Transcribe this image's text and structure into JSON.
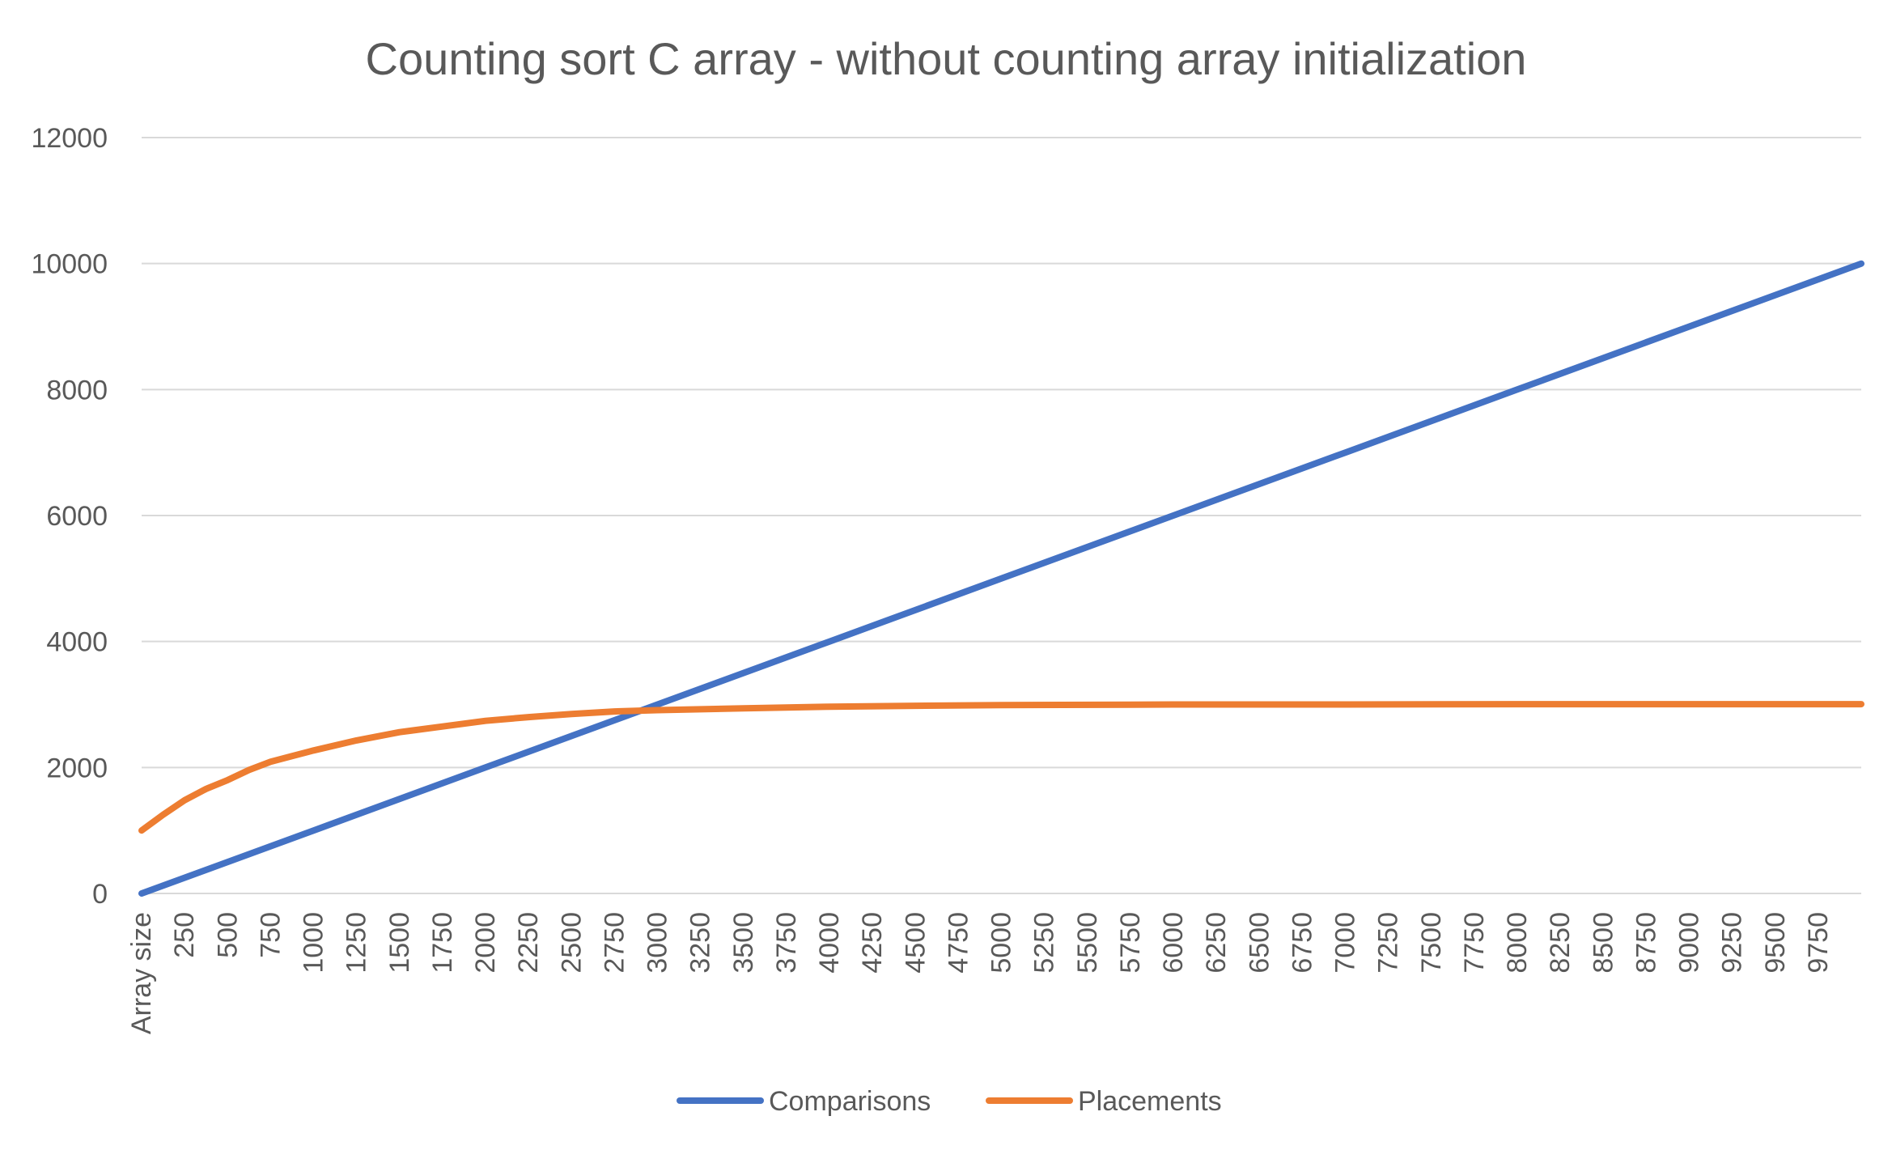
{
  "chart_data": {
    "type": "line",
    "title": "Counting sort C array - without counting array initialization",
    "xlabel": "",
    "ylabel": "",
    "ylim": [
      0,
      12000
    ],
    "y_ticks": [
      0,
      2000,
      4000,
      6000,
      8000,
      10000,
      12000
    ],
    "x_range": [
      0,
      10000
    ],
    "x_tick_labels": [
      "Array size",
      "250",
      "500",
      "750",
      "1000",
      "1250",
      "1500",
      "1750",
      "2000",
      "2250",
      "2500",
      "2750",
      "3000",
      "3250",
      "3500",
      "3750",
      "4000",
      "4250",
      "4500",
      "4750",
      "5000",
      "5250",
      "5500",
      "5750",
      "6000",
      "6250",
      "6500",
      "6750",
      "7000",
      "7250",
      "7500",
      "7750",
      "8000",
      "8250",
      "8500",
      "8750",
      "9000",
      "9250",
      "9500",
      "9750"
    ],
    "grid": true,
    "legend_position": "bottom",
    "series": [
      {
        "name": "Comparisons",
        "color": "#4472C4",
        "x": [
          0,
          1000,
          2000,
          3000,
          4000,
          5000,
          6000,
          7000,
          8000,
          9000,
          10000
        ],
        "y": [
          0,
          1000,
          2000,
          3000,
          4000,
          5000,
          6000,
          7000,
          8000,
          9000,
          10000
        ]
      },
      {
        "name": "Placements",
        "color": "#ED7D31",
        "x": [
          0,
          125,
          250,
          375,
          500,
          625,
          750,
          875,
          1000,
          1250,
          1500,
          1750,
          2000,
          2250,
          2500,
          2750,
          3000,
          3500,
          4000,
          4500,
          5000,
          6000,
          7000,
          8000,
          9000,
          10000
        ],
        "y": [
          1000,
          1250,
          1480,
          1660,
          1800,
          1960,
          2090,
          2180,
          2270,
          2430,
          2560,
          2650,
          2740,
          2800,
          2850,
          2890,
          2910,
          2940,
          2965,
          2980,
          2990,
          3000,
          3000,
          3005,
          3005,
          3005
        ]
      }
    ]
  }
}
